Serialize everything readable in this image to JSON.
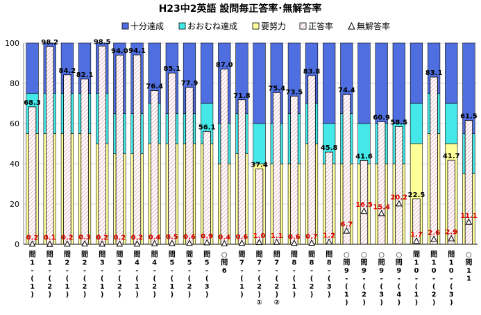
{
  "chart_data": {
    "type": "bar",
    "title": "H23中2英語 設問毎正答率･無解答率",
    "legend": [
      {
        "name": "十分達成",
        "color": "#4f6fe0"
      },
      {
        "name": "おおむね達成",
        "color": "#44e8e8"
      },
      {
        "name": "要努力",
        "color": "#ffff99"
      },
      {
        "name": "正答率",
        "color": "#ffffff"
      },
      {
        "name": "無解答率",
        "color": "#ffffff"
      }
    ],
    "legend_position": "top",
    "ylim": [
      0,
      100
    ],
    "yticks": [
      "0",
      "20",
      "40",
      "60",
      "80",
      "100"
    ],
    "grid": true,
    "categories": [
      "問1-(1)",
      "問1-(2)",
      "問2-(1)",
      "問2-(2)",
      "問3-(1)",
      "問3-(2)",
      "問4-(1)",
      "問4-(2)",
      "問5-(1)",
      "問5-(2)",
      "問5-(3)",
      "○問6",
      "問7-(1)",
      "問7-(2)①",
      "問7-(2)②",
      "問8-(1)",
      "問8-(2)",
      "問8-(3)",
      "○問9-(1)",
      "○問9-(2)",
      "○問9-(3)",
      "○問9-(4)",
      "問10-(1)",
      "問10-(2)",
      "問10-(3)",
      "○問11"
    ],
    "category_labels": [
      [
        "問",
        "1",
        "-",
        "(",
        "1",
        ")"
      ],
      [
        "問",
        "1",
        "-",
        "(",
        "2",
        ")"
      ],
      [
        "問",
        "2",
        "-",
        "(",
        "1",
        ")"
      ],
      [
        "問",
        "2",
        "-",
        "(",
        "2",
        ")"
      ],
      [
        "問",
        "3",
        "-",
        "(",
        "1",
        ")"
      ],
      [
        "問",
        "3",
        "-",
        "(",
        "2",
        ")"
      ],
      [
        "問",
        "4",
        "-",
        "(",
        "1",
        ")"
      ],
      [
        "問",
        "4",
        "-",
        "(",
        "2",
        ")"
      ],
      [
        "問",
        "5",
        "-",
        "(",
        "1",
        ")"
      ],
      [
        "問",
        "5",
        "-",
        "(",
        "2",
        ")"
      ],
      [
        "問",
        "5",
        "-",
        "(",
        "3",
        ")"
      ],
      [
        "○",
        "問",
        "6"
      ],
      [
        "問",
        "7",
        "-",
        "(",
        "1",
        ")"
      ],
      [
        "問",
        "7",
        "-",
        "(",
        "2",
        ")",
        "①"
      ],
      [
        "問",
        "7",
        "-",
        "(",
        "2",
        ")",
        "②"
      ],
      [
        "問",
        "8",
        "-",
        "(",
        "1",
        ")"
      ],
      [
        "問",
        "8",
        "-",
        "(",
        "2",
        ")"
      ],
      [
        "問",
        "8",
        "-",
        "(",
        "3",
        ")"
      ],
      [
        "○",
        "問",
        "9",
        "-",
        "(",
        "1",
        ")"
      ],
      [
        "○",
        "問",
        "9",
        "-",
        "(",
        "2",
        ")"
      ],
      [
        "○",
        "問",
        "9",
        "-",
        "(",
        "3",
        ")"
      ],
      [
        "○",
        "問",
        "9",
        "-",
        "(",
        "4",
        ")"
      ],
      [
        "問",
        "1",
        "0",
        "-",
        "(",
        "1",
        ")"
      ],
      [
        "問",
        "1",
        "0",
        "-",
        "(",
        "2",
        ")"
      ],
      [
        "問",
        "1",
        "0",
        "-",
        "(",
        "3",
        ")"
      ],
      [
        "○",
        "問",
        "1",
        "1"
      ]
    ],
    "series": [
      {
        "name": "要努力",
        "values": [
          55,
          55,
          55,
          55,
          50,
          45,
          45,
          50,
          50,
          50,
          50,
          40,
          45,
          40,
          40,
          40,
          50,
          40,
          40,
          40,
          40,
          40,
          50,
          55,
          50,
          35
        ]
      },
      {
        "name": "おおむね達成",
        "values": [
          20,
          20,
          20,
          20,
          25,
          20,
          20,
          20,
          15,
          15,
          20,
          20,
          20,
          20,
          20,
          25,
          20,
          20,
          25,
          20,
          20,
          20,
          20,
          20,
          20,
          20
        ]
      },
      {
        "name": "十分達成",
        "values": [
          25,
          25,
          25,
          25,
          25,
          35,
          35,
          30,
          35,
          35,
          30,
          40,
          35,
          40,
          40,
          35,
          30,
          40,
          35,
          40,
          40,
          40,
          30,
          25,
          30,
          45
        ]
      },
      {
        "name": "正答率",
        "values": [
          68.3,
          98.2,
          84.2,
          82.1,
          98.5,
          94.0,
          94.1,
          76.4,
          85.1,
          77.9,
          56.1,
          87.0,
          71.8,
          37.4,
          75.4,
          73.5,
          83.8,
          45.8,
          74.4,
          41.6,
          60.9,
          58.5,
          22.5,
          83.1,
          41.7,
          61.5
        ],
        "labels": [
          "68.3",
          "98.2",
          "84.2",
          "82.1",
          "98.5",
          "94.0",
          "94.1",
          "76.4",
          "85.1",
          "77.9",
          "56.1",
          "87.0",
          "71.8",
          "37.4",
          "75.4",
          "73.5",
          "83.8",
          "45.8",
          "74.4",
          "41.6",
          "60.9",
          "58.5",
          "22.5",
          "83.1",
          "41.7",
          "61.5"
        ]
      },
      {
        "name": "無解答率",
        "values": [
          0.2,
          0.1,
          0.2,
          0.3,
          0.2,
          0.2,
          0.2,
          0.4,
          0.5,
          0.6,
          0.9,
          0.4,
          0.6,
          1.0,
          1.1,
          0.6,
          0.7,
          1.2,
          6.7,
          16.5,
          15.4,
          20.2,
          1.7,
          2.6,
          2.9,
          11.1
        ],
        "labels": [
          "0.2",
          "0.1",
          "0.2",
          "0.3",
          "0.2",
          "0.2",
          "0.2",
          "0.4",
          "0.5",
          "0.6",
          "0.9",
          "0.4",
          "0.6",
          "1.0",
          "1.1",
          "0.6",
          "0.7",
          "1.2",
          "6.7",
          "16.5",
          "15.4",
          "20.2",
          "1.7",
          "2.6",
          "2.9",
          "11.1"
        ]
      }
    ]
  }
}
